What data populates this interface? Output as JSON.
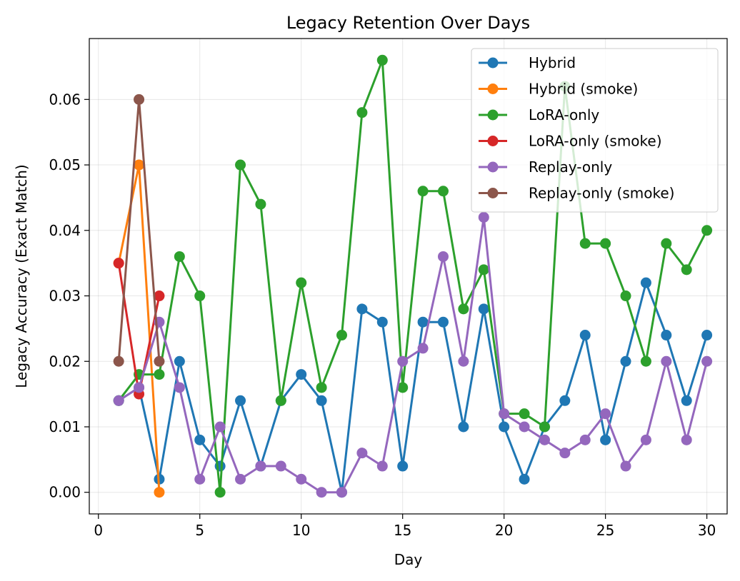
{
  "chart_data": {
    "type": "line",
    "title": "Legacy Retention Over Days",
    "xlabel": "Day",
    "ylabel": "Legacy Accuracy (Exact Match)",
    "xlim": [
      -0.45,
      31.0
    ],
    "ylim": [
      -0.0033,
      0.0693
    ],
    "xticks": [
      0,
      5,
      10,
      15,
      20,
      25,
      30
    ],
    "yticks": [
      0.0,
      0.01,
      0.02,
      0.03,
      0.04,
      0.05,
      0.06
    ],
    "ytick_labels": [
      "0.00",
      "0.01",
      "0.02",
      "0.03",
      "0.04",
      "0.05",
      "0.06"
    ],
    "grid": true,
    "legend_position": "top-right",
    "series": [
      {
        "name": "Hybrid",
        "color": "#1f77b4",
        "x": [
          1,
          2,
          3,
          4,
          5,
          6,
          7,
          8,
          9,
          10,
          11,
          12,
          13,
          14,
          15,
          16,
          17,
          18,
          19,
          20,
          21,
          22,
          23,
          24,
          25,
          26,
          27,
          28,
          29,
          30
        ],
        "y": [
          0.014,
          0.016,
          0.002,
          0.02,
          0.008,
          0.004,
          0.014,
          0.004,
          0.014,
          0.018,
          0.014,
          0.0,
          0.028,
          0.026,
          0.004,
          0.026,
          0.026,
          0.01,
          0.028,
          0.01,
          0.002,
          0.01,
          0.014,
          0.024,
          0.008,
          0.02,
          0.032,
          0.024,
          0.014,
          0.024
        ]
      },
      {
        "name": "Hybrid (smoke)",
        "color": "#ff7f0e",
        "x": [
          1,
          2,
          3
        ],
        "y": [
          0.035,
          0.05,
          0.0
        ]
      },
      {
        "name": "LoRA-only",
        "color": "#2ca02c",
        "x": [
          1,
          2,
          3,
          4,
          5,
          6,
          7,
          8,
          9,
          10,
          11,
          12,
          13,
          14,
          15,
          16,
          17,
          18,
          19,
          20,
          21,
          22,
          23,
          24,
          25,
          26,
          27,
          28,
          29,
          30
        ],
        "y": [
          0.014,
          0.018,
          0.018,
          0.036,
          0.03,
          0.0,
          0.05,
          0.044,
          0.014,
          0.032,
          0.016,
          0.024,
          0.058,
          0.066,
          0.016,
          0.046,
          0.046,
          0.028,
          0.034,
          0.012,
          0.012,
          0.01,
          0.062,
          0.038,
          0.038,
          0.03,
          0.02,
          0.038,
          0.034,
          0.04
        ]
      },
      {
        "name": "LoRA-only (smoke)",
        "color": "#d62728",
        "x": [
          1,
          2,
          3
        ],
        "y": [
          0.035,
          0.015,
          0.03
        ]
      },
      {
        "name": "Replay-only",
        "color": "#9467bd",
        "x": [
          1,
          2,
          3,
          4,
          5,
          6,
          7,
          8,
          9,
          10,
          11,
          12,
          13,
          14,
          15,
          16,
          17,
          18,
          19,
          20,
          21,
          22,
          23,
          24,
          25,
          26,
          27,
          28,
          29,
          30
        ],
        "y": [
          0.014,
          0.016,
          0.026,
          0.016,
          0.002,
          0.01,
          0.002,
          0.004,
          0.004,
          0.002,
          0.0,
          0.0,
          0.006,
          0.004,
          0.02,
          0.022,
          0.036,
          0.02,
          0.042,
          0.012,
          0.01,
          0.008,
          0.006,
          0.008,
          0.012,
          0.004,
          0.008,
          0.02,
          0.008,
          0.02
        ]
      },
      {
        "name": "Replay-only (smoke)",
        "color": "#8c564b",
        "x": [
          1,
          2,
          3
        ],
        "y": [
          0.02,
          0.06,
          0.02
        ]
      }
    ]
  }
}
